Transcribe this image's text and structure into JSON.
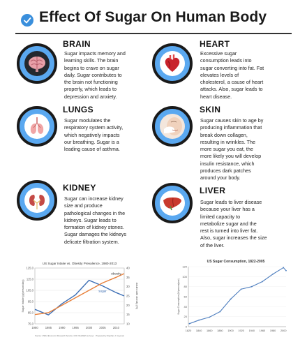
{
  "title": "Effect Of Sugar On Human Body",
  "sections": [
    {
      "key": "brain",
      "heading": "BRAIN",
      "icon": "brain-icon",
      "lines": [
        "Sugar impacts memory and",
        "learning skills. The brain",
        "begins to crave on sugar",
        "daily. Sugar contributes to",
        "the brain not functioning",
        "properly, which leads to",
        "depression and anxiety."
      ]
    },
    {
      "key": "heart",
      "heading": "HEART",
      "icon": "heart-icon",
      "lines": [
        "Excessive sugar",
        "consumption leads into",
        "sugar converting into fat. Fat",
        "elevates levels of",
        "cholesterol, a cause of heart",
        "attacks. Also, sugar leads to",
        "heart disease."
      ]
    },
    {
      "key": "lungs",
      "heading": "LUNGS",
      "icon": "lungs-icon",
      "lines": [
        "Sugar modulates the",
        "respiratory system activity,",
        "which negatively impacts",
        "our breathing. Sugar is a",
        "leading cause of asthma."
      ]
    },
    {
      "key": "skin",
      "heading": "SKIN",
      "icon": "face-icon",
      "lines": [
        "Sugar causes skin to age by",
        "producing inflammation that",
        "break down collagen,",
        "resulting in wrinkles. The",
        "more sugar you eat, the",
        "more likely you will develop",
        "insulin resistance, which",
        "produces dark patches",
        "around your body."
      ]
    },
    {
      "key": "kidney",
      "heading": "KIDNEY",
      "icon": "kidneys-icon",
      "lines": [
        "Sugar can increase kidney",
        "size and produce",
        "pathological changes in the",
        "kidneys. Sugar leads to",
        "formation of kidney stones.",
        "Sugar damages the kidneys",
        "delicate filtration system."
      ]
    },
    {
      "key": "liver",
      "heading": "LIVER",
      "icon": "liver-icon",
      "lines": [
        "Sugar leads to liver disease",
        "because your liver has a",
        "limited capacity to",
        "metabolize sugar and the",
        "rest is turned into liver fat.",
        "Also, sugar increases the size",
        "of the liver."
      ]
    }
  ],
  "chart_data": [
    {
      "type": "line",
      "title": "US Sugar Intake vs. Obesity Prevalence, 1980-2013",
      "ylabel": "Sugar Intake (g/person/day)",
      "y2label": "Adults with obesity (%)",
      "x": [
        1980,
        1985,
        1990,
        1995,
        2000,
        2005,
        2010,
        2013
      ],
      "xticks": [
        1980,
        1985,
        1990,
        1995,
        2000,
        2005,
        2010
      ],
      "ylim": [
        75,
        125
      ],
      "yticks": [
        75,
        85,
        95,
        105,
        115,
        125
      ],
      "y2lim": [
        10,
        40
      ],
      "y2ticks": [
        10,
        15,
        20,
        25,
        30,
        35,
        40
      ],
      "series": [
        {
          "name": "sugar",
          "axis": "left",
          "color": "#3d6fb5",
          "values": [
            88,
            83,
            93,
            101,
            114,
            109,
            103,
            100
          ]
        },
        {
          "name": "obesity",
          "axis": "right",
          "color": "#e8803a",
          "values": [
            15,
            16,
            20,
            24,
            28,
            32,
            35,
            37
          ]
        }
      ],
      "source": "Source: USDA Economic Research Service; CDC NHANES surveys",
      "credit": "Prepared by Stephan J. Guyenet"
    },
    {
      "type": "line",
      "title": "US Sugar Consumption, 1822-2005",
      "ylabel": "Sugar Consumption (lb/person/year)",
      "x": [
        1822,
        1840,
        1860,
        1880,
        1900,
        1920,
        1940,
        1960,
        1980,
        2000,
        2005
      ],
      "xticks": [
        1820,
        1840,
        1860,
        1880,
        1900,
        1920,
        1940,
        1960,
        1980,
        2000
      ],
      "ylim": [
        0,
        120
      ],
      "yticks": [
        0,
        20,
        40,
        60,
        80,
        100,
        120
      ],
      "series": [
        {
          "name": "sugar consumption",
          "color": "#4f7fbf",
          "values": [
            6,
            13,
            19,
            30,
            55,
            75,
            80,
            90,
            105,
            118,
            112
          ]
        }
      ]
    }
  ]
}
